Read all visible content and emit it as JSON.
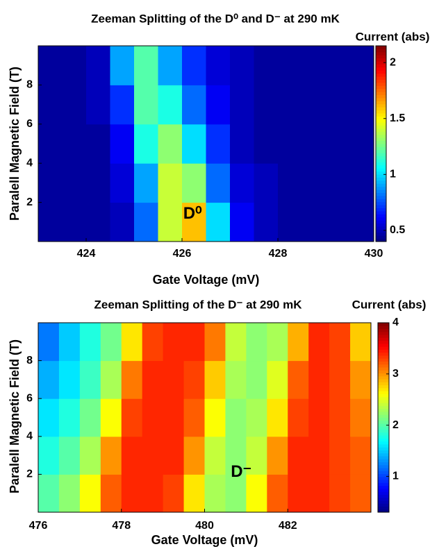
{
  "chart_data": [
    {
      "type": "heatmap",
      "title": "Zeeman Splitting of the D⁰ and D⁻ at 290 mK",
      "xlabel": "Gate Voltage (mV)",
      "ylabel": "Paralell Magnetic Field (T)",
      "colorbar_label": "Current (abs)",
      "annotation": "D⁰",
      "colormap": "jet",
      "xlim": [
        423,
        430
      ],
      "xticks": [
        424,
        426,
        428,
        430
      ],
      "ylim": [
        0,
        10
      ],
      "yticks": [
        2,
        4,
        6,
        8
      ],
      "clim": [
        0.4,
        2.15
      ],
      "cticks": [
        0.5,
        1,
        1.5,
        2
      ],
      "x": [
        423.25,
        423.75,
        424.25,
        424.75,
        425.25,
        425.75,
        426.25,
        426.75,
        427.25,
        427.75,
        428.25,
        428.75,
        429.25,
        429.75
      ],
      "y": [
        1,
        3,
        5,
        7,
        9
      ],
      "z": [
        [
          0.45,
          0.45,
          0.45,
          0.5,
          0.8,
          1.4,
          1.6,
          1.0,
          0.6,
          0.5,
          0.45,
          0.45,
          0.45,
          0.45
        ],
        [
          0.45,
          0.45,
          0.45,
          0.55,
          0.9,
          1.4,
          1.3,
          0.8,
          0.55,
          0.5,
          0.45,
          0.45,
          0.45,
          0.45
        ],
        [
          0.45,
          0.45,
          0.45,
          0.6,
          1.1,
          1.3,
          1.0,
          0.7,
          0.5,
          0.45,
          0.45,
          0.45,
          0.45,
          0.45
        ],
        [
          0.45,
          0.45,
          0.5,
          0.7,
          1.2,
          1.1,
          0.8,
          0.6,
          0.5,
          0.45,
          0.45,
          0.45,
          0.45,
          0.45
        ],
        [
          0.45,
          0.45,
          0.5,
          0.9,
          1.2,
          0.9,
          0.7,
          0.55,
          0.5,
          0.45,
          0.45,
          0.45,
          0.45,
          0.45
        ]
      ]
    },
    {
      "type": "heatmap",
      "title": "Zeeman Splitting of the  D⁻ at 290 mK",
      "xlabel": "Gate Voltage (mV)",
      "ylabel": "Paralell Magnetic Field (T)",
      "colorbar_label": "Current (abs)",
      "annotation": "D⁻",
      "colormap": "jet",
      "xlim": [
        476,
        484
      ],
      "xticks": [
        476,
        478,
        480,
        482
      ],
      "ylim": [
        0,
        10
      ],
      "yticks": [
        2,
        4,
        6,
        8
      ],
      "clim": [
        0.3,
        4
      ],
      "cticks": [
        1,
        2,
        3,
        4
      ],
      "x": [
        476.25,
        476.75,
        477.25,
        477.75,
        478.25,
        478.75,
        479.25,
        479.75,
        480.25,
        480.75,
        481.25,
        481.75,
        482.25,
        482.75,
        483.25,
        483.75
      ],
      "y": [
        1,
        3,
        5,
        7,
        9
      ],
      "z": [
        [
          2.0,
          2.2,
          2.6,
          3.2,
          3.4,
          3.4,
          3.3,
          2.7,
          2.3,
          2.2,
          2.6,
          3.2,
          3.4,
          3.4,
          3.3,
          3.2
        ],
        [
          1.8,
          2.0,
          2.3,
          3.0,
          3.4,
          3.4,
          3.4,
          3.0,
          2.4,
          2.2,
          2.4,
          3.0,
          3.4,
          3.4,
          3.3,
          3.2
        ],
        [
          1.6,
          1.8,
          2.1,
          2.6,
          3.3,
          3.4,
          3.4,
          3.2,
          2.6,
          2.2,
          2.3,
          2.7,
          3.3,
          3.4,
          3.3,
          3.1
        ],
        [
          1.4,
          1.6,
          1.9,
          2.3,
          3.1,
          3.4,
          3.4,
          3.3,
          2.8,
          2.3,
          2.2,
          2.5,
          3.2,
          3.4,
          3.3,
          3.0
        ],
        [
          1.2,
          1.5,
          1.8,
          2.1,
          2.7,
          3.3,
          3.4,
          3.4,
          3.1,
          2.4,
          2.2,
          2.3,
          2.9,
          3.4,
          3.3,
          2.8
        ]
      ]
    }
  ]
}
